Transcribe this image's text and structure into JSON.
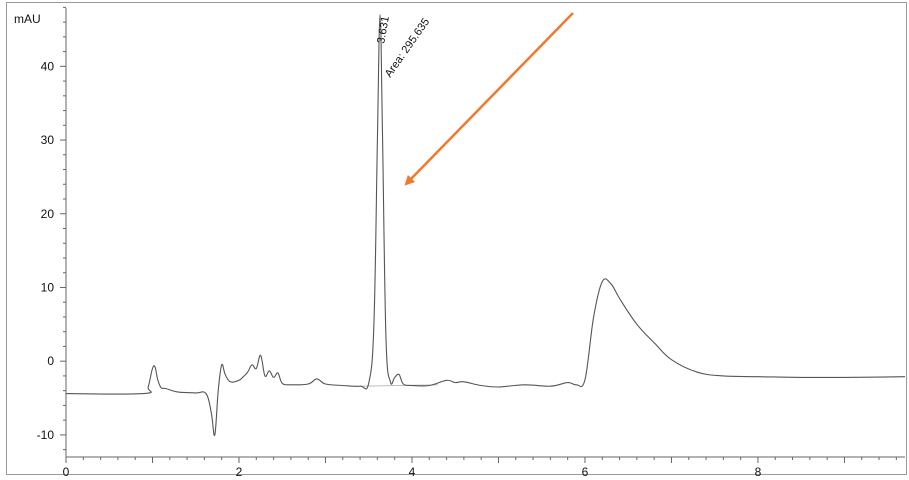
{
  "chart_data": {
    "type": "line",
    "ylabel": "mAU",
    "x_ticks": [
      0,
      2,
      4,
      6,
      8
    ],
    "y_ticks": [
      -10,
      0,
      10,
      20,
      30,
      40
    ],
    "xlim": [
      0,
      9.7
    ],
    "ylim": [
      -13,
      49
    ],
    "grid": false,
    "legend": "none",
    "series": [
      {
        "x": [
          0,
          0.9,
          0.95,
          1.0,
          1.03,
          1.06,
          1.1,
          1.15,
          1.3,
          1.5,
          1.62,
          1.68,
          1.72,
          1.76,
          1.8,
          1.84,
          1.9,
          2.0,
          2.05,
          2.1,
          2.15,
          2.2,
          2.25,
          2.3,
          2.35,
          2.4,
          2.45,
          2.5,
          2.6,
          2.8,
          2.9,
          3.0,
          3.2,
          3.4,
          3.5,
          3.56,
          3.6,
          3.631,
          3.66,
          3.7,
          3.75,
          3.8,
          3.85,
          3.9,
          4.0,
          4.2,
          4.4,
          4.5,
          4.6,
          4.8,
          5.0,
          5.3,
          5.6,
          5.8,
          5.9,
          6.0,
          6.1,
          6.2,
          6.3,
          6.4,
          6.6,
          6.8,
          7.0,
          7.3,
          7.6,
          8.0,
          8.5,
          9.0,
          9.7
        ],
        "y": [
          -4.4,
          -4.4,
          -3.5,
          -1.0,
          -0.8,
          -2.5,
          -3.6,
          -3.7,
          -4.2,
          -4.3,
          -4.4,
          -7.0,
          -10.0,
          -4.0,
          -0.5,
          -1.8,
          -2.8,
          -2.6,
          -2.1,
          -1.5,
          -0.5,
          -1.0,
          0.8,
          -2.0,
          -1.3,
          -2.2,
          -1.6,
          -3.0,
          -3.2,
          -3.1,
          -2.4,
          -3.1,
          -3.3,
          -3.4,
          -3.0,
          5.0,
          30.0,
          47.0,
          30.0,
          3.0,
          -2.8,
          -2.2,
          -1.8,
          -3.1,
          -3.3,
          -3.3,
          -2.6,
          -2.9,
          -2.8,
          -3.3,
          -3.5,
          -3.2,
          -3.4,
          -2.9,
          -3.2,
          -2.5,
          6.0,
          10.8,
          10.5,
          8.5,
          5.0,
          2.5,
          0.2,
          -1.5,
          -2.0,
          -2.1,
          -2.2,
          -2.2,
          -2.1
        ]
      }
    ],
    "peak": {
      "rt": 3.631,
      "rt_label": "3.631",
      "area_label": "Area: 295.635"
    }
  }
}
